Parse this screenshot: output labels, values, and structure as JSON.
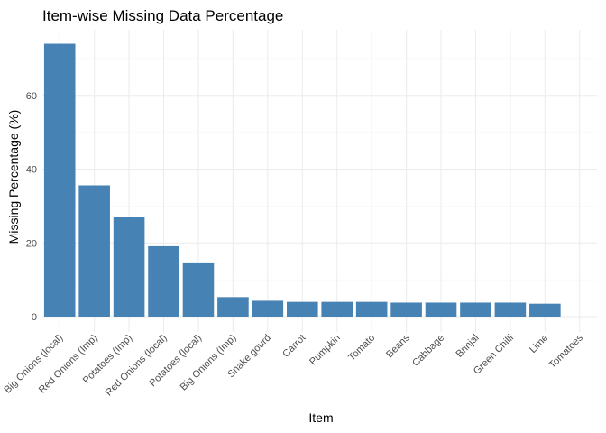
{
  "chart_data": {
    "type": "bar",
    "title": "Item-wise Missing Data Percentage",
    "xlabel": "Item",
    "ylabel": "Missing Percentage (%)",
    "categories": [
      "Big Onions (local)",
      "Red Onions (Imp)",
      "Potatoes (Imp)",
      "Red Onions (local)",
      "Potatoes (local)",
      "Big Onions (Imp)",
      "Snake gourd",
      "Carrot",
      "Pumpkin",
      "Tomato",
      "Beans",
      "Cabbage",
      "Brinjal",
      "Green Chilli",
      "Lime",
      "Tomatoes"
    ],
    "values": [
      74,
      35.6,
      27.1,
      19.1,
      14.7,
      5.3,
      4.3,
      4.0,
      4.0,
      4.0,
      3.8,
      3.8,
      3.8,
      3.8,
      3.5,
      0
    ],
    "ylim": [
      0,
      77.8
    ],
    "yticks": [
      0,
      20,
      40,
      60
    ],
    "grid": true,
    "bar_color": "#4682b4"
  }
}
